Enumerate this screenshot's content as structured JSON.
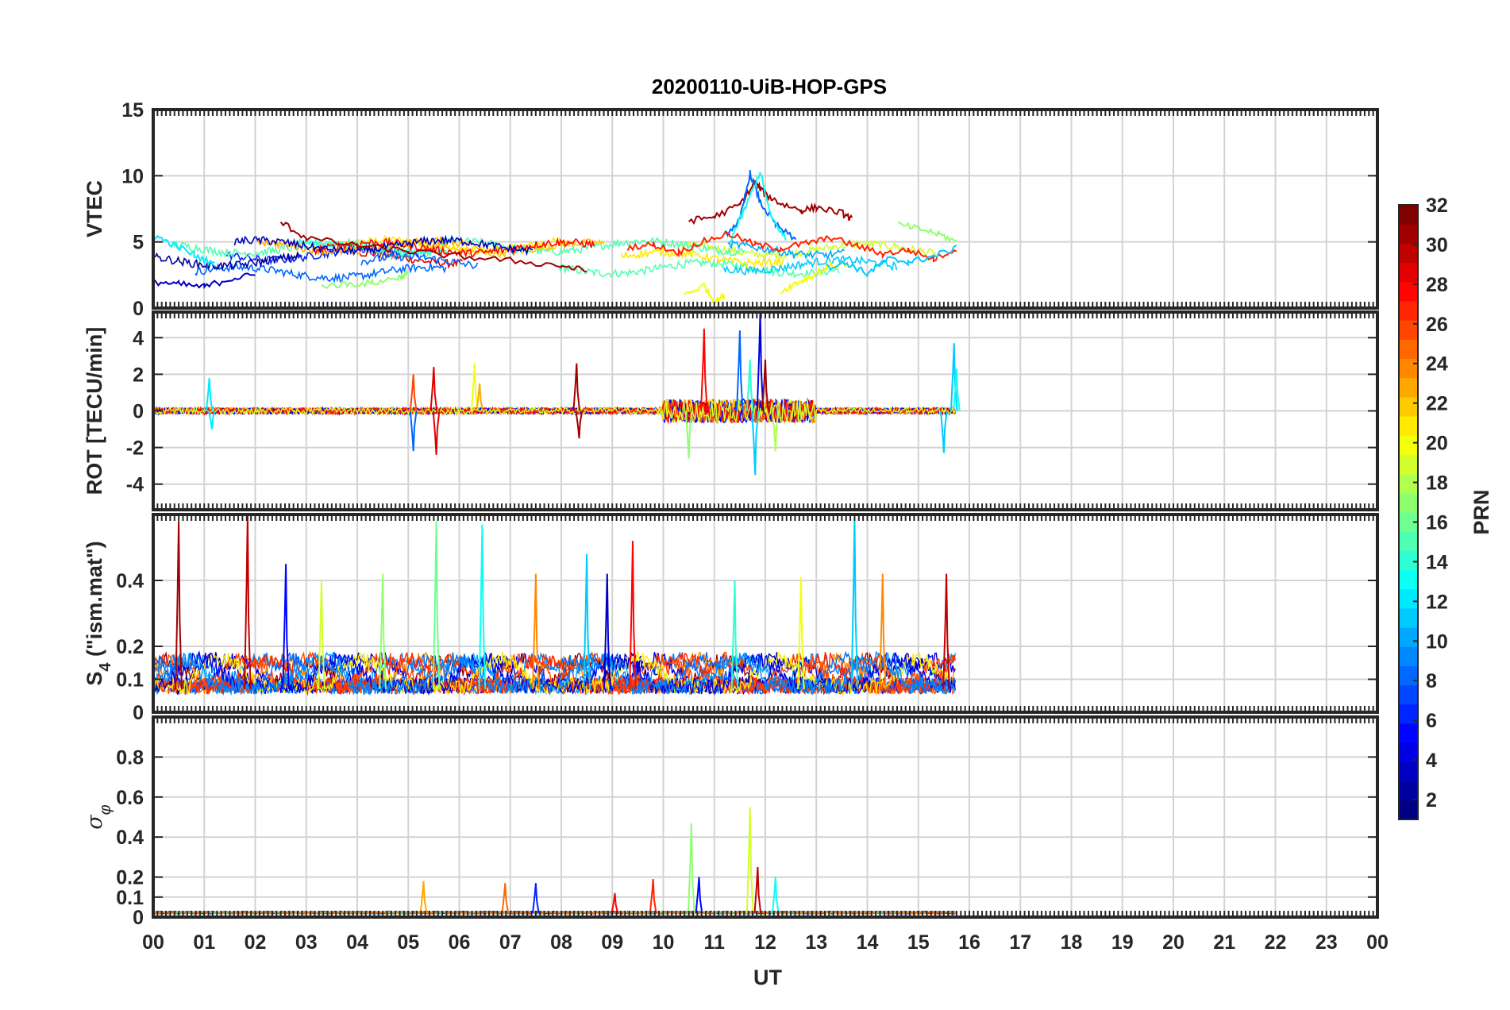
{
  "chart_data": {
    "type": "line",
    "title": "20200110-UiB-HOP-GPS",
    "xlabel": "UT",
    "x_ticks": [
      "00",
      "01",
      "02",
      "03",
      "04",
      "05",
      "06",
      "07",
      "08",
      "09",
      "10",
      "11",
      "12",
      "13",
      "14",
      "15",
      "16",
      "17",
      "18",
      "19",
      "20",
      "21",
      "22",
      "23",
      "00"
    ],
    "xlim_hours": [
      0,
      24
    ],
    "data_extent_hours": [
      0,
      15.75
    ],
    "grid": true,
    "colorbar": {
      "label": "PRN",
      "range": [
        1,
        32
      ],
      "ticks": [
        "2",
        "4",
        "6",
        "8",
        "10",
        "12",
        "14",
        "16",
        "18",
        "20",
        "22",
        "24",
        "26",
        "28",
        "30",
        "32"
      ],
      "colormap": "jet",
      "placement": "right"
    },
    "panels": [
      {
        "id": "vtec",
        "ylabel": "VTEC",
        "ylim": [
          0,
          15
        ],
        "y_ticks": [
          "0",
          "5",
          "10",
          "15"
        ],
        "baseline": 3.5,
        "series": [
          {
            "prn": 31,
            "x": [
              2.5,
              3.0,
              4.0,
              5.0,
              6.0,
              7.0,
              8.0,
              8.5
            ],
            "values": [
              6.5,
              5.3,
              4.7,
              4.3,
              3.9,
              3.6,
              3.2,
              2.8
            ]
          },
          {
            "prn": 31,
            "x": [
              10.5,
              11.0,
              11.5,
              11.8,
              12.0,
              12.3,
              12.7,
              13.0,
              13.5,
              13.7
            ],
            "values": [
              6.6,
              6.9,
              7.8,
              9.5,
              8.6,
              7.9,
              7.4,
              7.6,
              7.2,
              6.7
            ]
          },
          {
            "prn": 8,
            "x": [
              11.2,
              11.5,
              11.7,
              11.9,
              12.2,
              12.6
            ],
            "values": [
              5.5,
              6.6,
              10.2,
              8.0,
              6.3,
              5.1
            ]
          },
          {
            "prn": 13,
            "x": [
              11.3,
              11.6,
              11.9,
              12.1,
              12.4
            ],
            "values": [
              5.0,
              7.5,
              10.3,
              7.0,
              5.2
            ]
          },
          {
            "prn": 20,
            "x": [
              10.4,
              10.8,
              11.0,
              11.2
            ],
            "values": [
              1.0,
              1.7,
              0.5,
              0.9
            ]
          },
          {
            "prn": 20,
            "x": [
              12.3,
              12.6,
              12.9,
              13.2,
              13.6
            ],
            "values": [
              1.2,
              1.9,
              2.4,
              3.1,
              3.4
            ]
          },
          {
            "prn": 17,
            "x": [
              14.6,
              15.0,
              15.4,
              15.75
            ],
            "values": [
              6.3,
              6.0,
              5.6,
              5.0
            ]
          },
          {
            "prn": 17,
            "x": [
              3.3,
              3.8,
              4.3,
              4.8,
              5.0
            ],
            "values": [
              1.7,
              1.8,
              1.9,
              2.3,
              2.6
            ]
          },
          {
            "prn": 3,
            "x": [
              0.0,
              0.5,
              1.0,
              1.5,
              2.0
            ],
            "values": [
              2.0,
              1.8,
              1.6,
              2.2,
              2.5
            ]
          },
          {
            "prn": 12,
            "x": [
              0.0,
              0.4,
              0.8,
              1.2
            ],
            "values": [
              5.5,
              4.8,
              4.0,
              3.3
            ]
          },
          {
            "prn": 27,
            "x": [
              9.3,
              9.8,
              10.3,
              10.8,
              11.3,
              11.8,
              12.3,
              12.8,
              13.3,
              13.8,
              14.3,
              14.8,
              15.3,
              15.75
            ],
            "values": [
              4.6,
              4.8,
              4.2,
              5.1,
              5.6,
              4.8,
              4.5,
              4.9,
              5.3,
              4.7,
              4.1,
              4.4,
              3.7,
              4.5
            ]
          },
          {
            "prn": 11,
            "x": [
              13.2,
              13.6,
              14.0,
              14.4,
              14.8,
              15.2,
              15.75
            ],
            "values": [
              3.1,
              3.4,
              2.6,
              3.7,
              3.5,
              3.8,
              4.5
            ]
          }
        ]
      },
      {
        "id": "rot",
        "ylabel": "ROT [TECU/min]",
        "ylim": [
          -5.4,
          5.4
        ],
        "y_ticks": [
          "-4",
          "-2",
          "0",
          "2",
          "4"
        ],
        "baseline": 0,
        "spikes": [
          {
            "prn": 12,
            "x": 1.1,
            "value": 1.8
          },
          {
            "prn": 12,
            "x": 1.15,
            "value": -1.0
          },
          {
            "prn": 26,
            "x": 5.1,
            "value": 2.0
          },
          {
            "prn": 8,
            "x": 5.1,
            "value": -2.2
          },
          {
            "prn": 29,
            "x": 5.5,
            "value": 2.4
          },
          {
            "prn": 29,
            "x": 5.55,
            "value": -2.4
          },
          {
            "prn": 20,
            "x": 6.3,
            "value": 2.6
          },
          {
            "prn": 23,
            "x": 6.4,
            "value": 1.5
          },
          {
            "prn": 31,
            "x": 8.3,
            "value": 2.6
          },
          {
            "prn": 31,
            "x": 8.35,
            "value": -1.5
          },
          {
            "prn": 28,
            "x": 10.8,
            "value": 4.5
          },
          {
            "prn": 17,
            "x": 10.5,
            "value": -2.6
          },
          {
            "prn": 8,
            "x": 11.5,
            "value": 4.4
          },
          {
            "prn": 11,
            "x": 11.8,
            "value": -3.5
          },
          {
            "prn": 4,
            "x": 11.9,
            "value": 5.4
          },
          {
            "prn": 14,
            "x": 11.7,
            "value": 2.8
          },
          {
            "prn": 18,
            "x": 12.2,
            "value": -2.2
          },
          {
            "prn": 31,
            "x": 12.0,
            "value": 2.8
          },
          {
            "prn": 11,
            "x": 15.7,
            "value": 3.7
          },
          {
            "prn": 11,
            "x": 15.5,
            "value": -2.3
          },
          {
            "prn": 13,
            "x": 15.75,
            "value": 2.3
          }
        ]
      },
      {
        "id": "s4",
        "ylabel": "S_4 (\"ism.mat\")",
        "ylabel_main": "S",
        "ylabel_sub": "4",
        "ylabel_rest": " (\"ism.mat\")",
        "ylim": [
          0,
          0.6
        ],
        "y_ticks": [
          "0",
          "0.1",
          "0.2",
          "0.4"
        ],
        "baseline": 0.07,
        "spikes": [
          {
            "prn": 31,
            "x": 0.5,
            "value": 0.58
          },
          {
            "prn": 30,
            "x": 1.85,
            "value": 0.6
          },
          {
            "prn": 5,
            "x": 2.6,
            "value": 0.45
          },
          {
            "prn": 19,
            "x": 3.3,
            "value": 0.4
          },
          {
            "prn": 17,
            "x": 4.5,
            "value": 0.42
          },
          {
            "prn": 16,
            "x": 5.55,
            "value": 0.58
          },
          {
            "prn": 13,
            "x": 6.45,
            "value": 0.57
          },
          {
            "prn": 24,
            "x": 7.5,
            "value": 0.42
          },
          {
            "prn": 11,
            "x": 8.5,
            "value": 0.48
          },
          {
            "prn": 3,
            "x": 8.9,
            "value": 0.42
          },
          {
            "prn": 28,
            "x": 9.4,
            "value": 0.52
          },
          {
            "prn": 14,
            "x": 11.4,
            "value": 0.4
          },
          {
            "prn": 20,
            "x": 12.7,
            "value": 0.41
          },
          {
            "prn": 11,
            "x": 13.75,
            "value": 0.6
          },
          {
            "prn": 24,
            "x": 14.3,
            "value": 0.42
          },
          {
            "prn": 30,
            "x": 15.55,
            "value": 0.42
          }
        ]
      },
      {
        "id": "sigma",
        "ylabel": "σ_φ",
        "ylabel_main": "σ",
        "ylabel_sub": "φ",
        "ylim": [
          0,
          1
        ],
        "y_ticks": [
          "0",
          "0.1",
          "0.2",
          "0.4",
          "0.6",
          "0.8"
        ],
        "baseline": 0.02,
        "spikes": [
          {
            "prn": 23,
            "x": 5.3,
            "value": 0.18
          },
          {
            "prn": 25,
            "x": 6.9,
            "value": 0.17
          },
          {
            "prn": 6,
            "x": 7.5,
            "value": 0.17
          },
          {
            "prn": 28,
            "x": 9.05,
            "value": 0.12
          },
          {
            "prn": 27,
            "x": 9.8,
            "value": 0.19
          },
          {
            "prn": 17,
            "x": 10.55,
            "value": 0.47
          },
          {
            "prn": 5,
            "x": 10.7,
            "value": 0.2
          },
          {
            "prn": 19,
            "x": 11.7,
            "value": 0.55
          },
          {
            "prn": 30,
            "x": 11.85,
            "value": 0.25
          },
          {
            "prn": 13,
            "x": 12.2,
            "value": 0.2
          }
        ]
      }
    ]
  }
}
